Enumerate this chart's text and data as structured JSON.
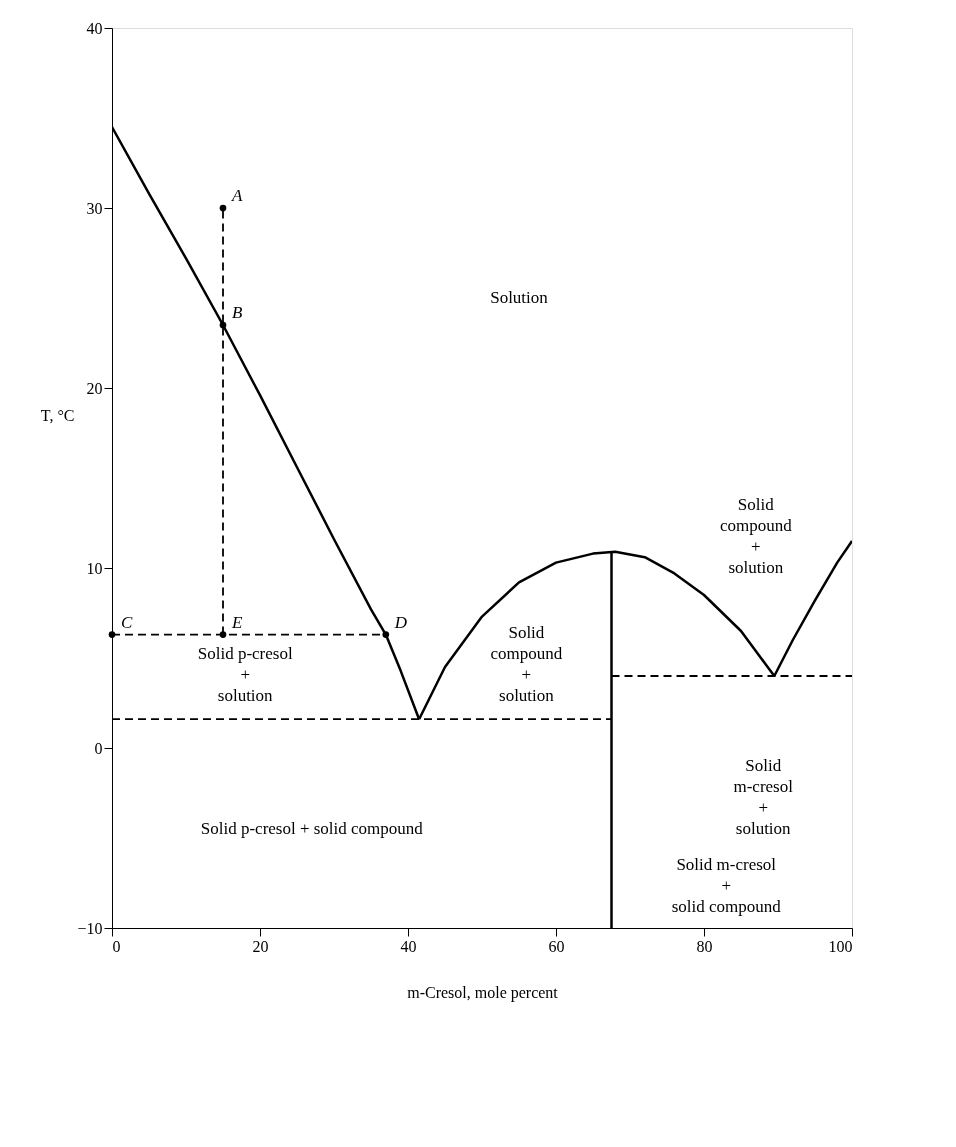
{
  "chart_data": {
    "type": "line",
    "xlabel": "m-Cresol, mole percent",
    "ylabel": "T, °C",
    "xlim": [
      0,
      100
    ],
    "ylim": [
      -10,
      40
    ],
    "xticks": [
      0,
      20,
      40,
      60,
      80,
      100
    ],
    "yticks": [
      -10,
      0,
      10,
      20,
      30,
      40
    ],
    "grid": false,
    "series": [
      {
        "color": "#000000",
        "line_style": "solid",
        "x": [
          0,
          5,
          10,
          15,
          20,
          25,
          30,
          35,
          37,
          39,
          41.5
        ],
        "values": [
          34.5,
          30.8,
          27.2,
          23.5,
          19.6,
          15.6,
          11.6,
          7.7,
          6.3,
          4.3,
          1.6
        ]
      },
      {
        "color": "#000000",
        "line_style": "solid",
        "x": [
          41.5,
          45,
          50,
          55,
          60,
          65,
          68,
          72,
          76,
          80,
          85,
          89.5
        ],
        "values": [
          1.6,
          4.5,
          7.3,
          9.2,
          10.3,
          10.8,
          10.9,
          10.6,
          9.7,
          8.5,
          6.5,
          4.0
        ]
      },
      {
        "color": "#000000",
        "line_style": "solid",
        "x": [
          89.5,
          92,
          95,
          98,
          100
        ],
        "values": [
          4.0,
          6.0,
          8.2,
          10.3,
          11.5
        ]
      },
      {
        "color": "#000000",
        "line_style": "solid",
        "x": [
          67.5,
          67.5
        ],
        "values": [
          -10,
          10.9
        ]
      },
      {
        "color": "#000000",
        "line_style": "dashed",
        "x": [
          0,
          67.5
        ],
        "values": [
          1.6,
          1.6
        ]
      },
      {
        "color": "#000000",
        "line_style": "dashed",
        "x": [
          67.5,
          100
        ],
        "values": [
          4.0,
          4.0
        ]
      },
      {
        "color": "#000000",
        "line_style": "dashed",
        "x": [
          0,
          37
        ],
        "values": [
          6.3,
          6.3
        ]
      },
      {
        "color": "#000000",
        "line_style": "dashed",
        "x": [
          15,
          15
        ],
        "values": [
          6.3,
          30
        ]
      },
      {
        "type": "scatter",
        "color": "#000000",
        "marker": "circle",
        "x": [
          15,
          15,
          0,
          37,
          15
        ],
        "values": [
          30,
          23.5,
          6.3,
          6.3,
          6.3
        ]
      }
    ],
    "annotations": [
      {
        "text": "A",
        "x": 15,
        "y": 30
      },
      {
        "text": "B",
        "x": 15,
        "y": 23.5
      },
      {
        "text": "C",
        "x": 0,
        "y": 6.3
      },
      {
        "text": "D",
        "x": 37,
        "y": 6.3
      },
      {
        "text": "E",
        "x": 15,
        "y": 6.3
      },
      "Solution",
      "Solid p-cresol\n+\nsolution",
      "Solid\ncompound\n+\nsolution",
      "Solid\ncompound\n+\nsolution",
      "Solid\nm-cresol\n+\nsolution",
      "Solid p-cresol + solid compound",
      "Solid m-cresol\n+\nsolid compound"
    ]
  }
}
